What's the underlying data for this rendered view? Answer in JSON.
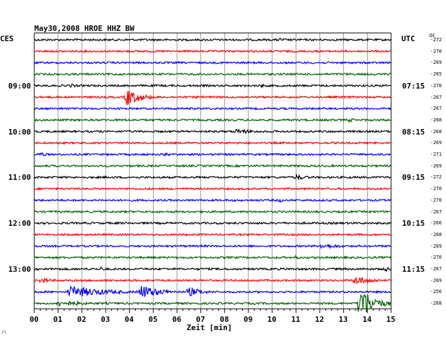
{
  "header": {
    "title": "May30,2008   HROE HHZ BW",
    "left_tz": "CES",
    "right_tz": "UTC",
    "dc_label": "DC"
  },
  "colors": {
    "palette": [
      "#000000",
      "#ff0000",
      "#0000ff",
      "#006000"
    ]
  },
  "time_labels": [
    {
      "row": 4,
      "left": "09:00",
      "right": "07:15"
    },
    {
      "row": 8,
      "left": "10:00",
      "right": "08:15"
    },
    {
      "row": 12,
      "left": "11:00",
      "right": "09:15"
    },
    {
      "row": 16,
      "left": "12:00",
      "right": "10:15"
    },
    {
      "row": 20,
      "left": "13:00",
      "right": "11:15"
    }
  ],
  "dc_values": [
    "-272",
    "-270",
    "-269",
    "-265",
    "-270",
    "-267",
    "-267",
    "-268",
    "-268",
    "-269",
    "-271",
    "-269",
    "-272",
    "-270",
    "-270",
    "-267",
    "-266",
    "-268",
    "-269",
    "-270",
    "-267",
    "-269",
    "-256",
    "-268"
  ],
  "x_ticks": [
    "00",
    "01",
    "02",
    "03",
    "04",
    "05",
    "06",
    "07",
    "08",
    "09",
    "10",
    "11",
    "12",
    "13",
    "14",
    "15"
  ],
  "x_label": "Zeit [min]",
  "corner_mark": "/\\",
  "chart_data": {
    "type": "line",
    "title": "May30,2008   HROE HHZ BW",
    "xlabel": "Zeit [min]",
    "xlim": [
      0,
      15
    ],
    "grid": true,
    "traces": 24,
    "minutes_per_trace": 15,
    "events": [
      {
        "trace": 0,
        "minute": 10.3,
        "amp": 3,
        "dur": 1.0
      },
      {
        "trace": 4,
        "minute": 1.5,
        "amp": 3,
        "dur": 1.2
      },
      {
        "trace": 4,
        "minute": 9.5,
        "amp": 3,
        "dur": 0.8
      },
      {
        "trace": 5,
        "minute": 3.9,
        "amp": 13,
        "dur": 1.5
      },
      {
        "trace": 7,
        "minute": 13.2,
        "amp": 3,
        "dur": 1.5
      },
      {
        "trace": 8,
        "minute": 8.5,
        "amp": 4,
        "dur": 2.5
      },
      {
        "trace": 10,
        "minute": 0.3,
        "amp": 4,
        "dur": 0.6
      },
      {
        "trace": 10,
        "minute": 5.5,
        "amp": 3,
        "dur": 0.8
      },
      {
        "trace": 12,
        "minute": 11.0,
        "amp": 4,
        "dur": 1.5
      },
      {
        "trace": 14,
        "minute": 10.3,
        "amp": 3,
        "dur": 0.8
      },
      {
        "trace": 18,
        "minute": 12.0,
        "amp": 4,
        "dur": 3.0
      },
      {
        "trace": 19,
        "minute": 11.0,
        "amp": 3,
        "dur": 0.8
      },
      {
        "trace": 20,
        "minute": 2.8,
        "amp": 3,
        "dur": 0.8
      },
      {
        "trace": 20,
        "minute": 14.8,
        "amp": 5,
        "dur": 0.4
      },
      {
        "trace": 21,
        "minute": 0.3,
        "amp": 5,
        "dur": 1.0
      },
      {
        "trace": 21,
        "minute": 13.5,
        "amp": 7,
        "dur": 2.0
      },
      {
        "trace": 22,
        "minute": 1.5,
        "amp": 9,
        "dur": 4.0
      },
      {
        "trace": 22,
        "minute": 4.5,
        "amp": 11,
        "dur": 2.0
      },
      {
        "trace": 22,
        "minute": 6.5,
        "amp": 7,
        "dur": 1.5
      },
      {
        "trace": 23,
        "minute": 1.0,
        "amp": 5,
        "dur": 3.0
      },
      {
        "trace": 23,
        "minute": 13.7,
        "amp": 28,
        "dur": 1.3
      }
    ]
  }
}
